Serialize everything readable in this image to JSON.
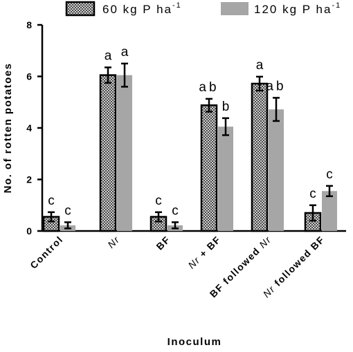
{
  "chart_data": {
    "type": "bar",
    "xlabel": "Inoculum",
    "ylabel": "No. of rotten potatoes",
    "ylim": [
      0,
      8
    ],
    "yticks": [
      "0",
      "2",
      "4",
      "6",
      "8"
    ],
    "categories": [
      "Control",
      "Nr",
      "BF",
      "Nr + BF",
      "BF followed Nr",
      "Nr followed BF"
    ],
    "category_parts": [
      [
        {
          "t": "Control",
          "i": false
        }
      ],
      [
        {
          "t": "Nr",
          "i": true
        }
      ],
      [
        {
          "t": "BF",
          "i": false
        }
      ],
      [
        {
          "t": "Nr",
          "i": true
        },
        {
          "t": " + BF",
          "i": false
        }
      ],
      [
        {
          "t": "BF followed ",
          "i": false
        },
        {
          "t": "Nr",
          "i": true
        }
      ],
      [
        {
          "t": "Nr",
          "i": true
        },
        {
          "t": " followed BF",
          "i": false
        }
      ]
    ],
    "legend_position": "top",
    "series": [
      {
        "name_base": "60 kg P ha",
        "name_sup": "-1",
        "pattern": "checkered",
        "color": "#222222",
        "values": [
          0.55,
          6.05,
          0.55,
          4.88,
          5.72,
          0.7
        ],
        "errors": [
          0.18,
          0.3,
          0.18,
          0.25,
          0.27,
          0.3
        ],
        "letters": [
          "c",
          "a",
          "c",
          "ab",
          "a",
          "c"
        ]
      },
      {
        "name_base": "120 kg P ha",
        "name_sup": "-1",
        "pattern": "solid",
        "color": "#a6a6a6",
        "values": [
          0.22,
          6.05,
          0.22,
          4.05,
          4.72,
          1.55
        ],
        "errors": [
          0.12,
          0.45,
          0.12,
          0.33,
          0.45,
          0.2
        ],
        "letters": [
          "c",
          "a",
          "c",
          "b",
          "ab",
          "c"
        ]
      }
    ]
  }
}
